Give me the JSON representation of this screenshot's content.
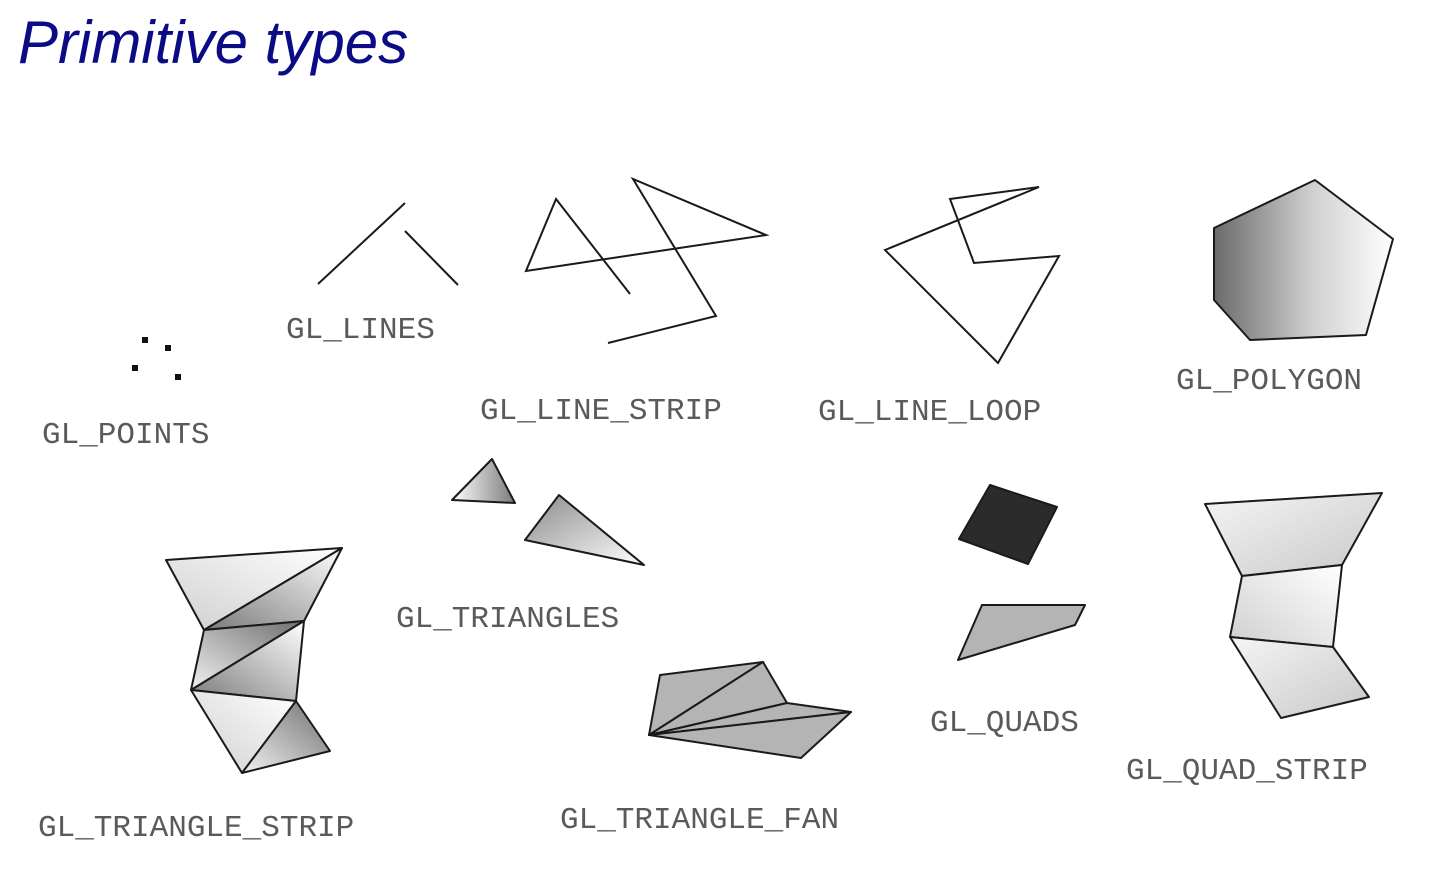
{
  "title": "Primitive types",
  "labels": {
    "points": "GL_POINTS",
    "lines": "GL_LINES",
    "line_strip": "GL_LINE_STRIP",
    "line_loop": "GL_LINE_LOOP",
    "polygon": "GL_POLYGON",
    "triangles": "GL_TRIANGLES",
    "quads": "GL_QUADS",
    "triangle_strip": "GL_TRIANGLE_STRIP",
    "triangle_fan": "GL_TRIANGLE_FAN",
    "quad_strip": "GL_QUAD_STRIP"
  },
  "colors": {
    "title": "#0b0b85",
    "label": "#5a5a5a",
    "stroke": "#1a1a1a",
    "dark_quad": "#2b2b2b",
    "mid_gray": "#b4b4b4"
  }
}
